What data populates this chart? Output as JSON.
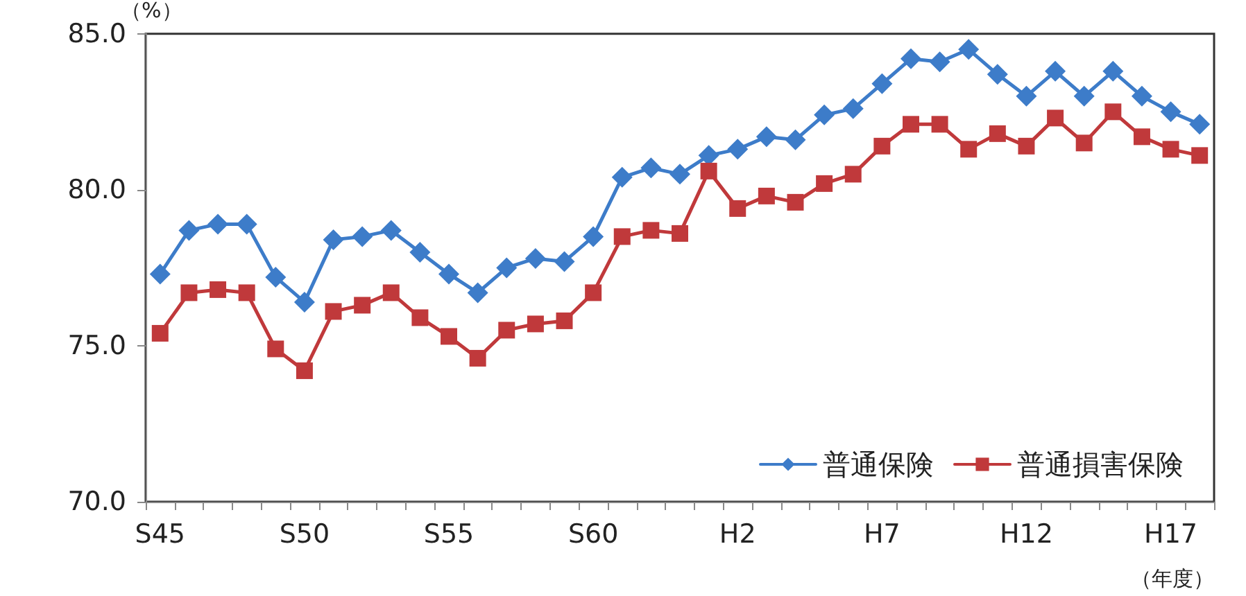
{
  "chart_data": {
    "type": "line",
    "ylabel": "（%）",
    "xlabel": "（年度）",
    "categories": [
      "S45",
      null,
      null,
      null,
      null,
      "S50",
      null,
      null,
      null,
      null,
      "S55",
      null,
      null,
      null,
      null,
      "S60",
      null,
      null,
      null,
      null,
      "H2",
      null,
      null,
      null,
      null,
      "H7",
      null,
      null,
      null,
      null,
      "H12",
      null,
      null,
      null,
      null,
      "H17",
      null
    ],
    "series": [
      {
        "name": "普通保険",
        "color": "#3d7cc9",
        "marker": "diamond",
        "values": [
          77.3,
          78.7,
          78.9,
          78.9,
          77.2,
          76.4,
          78.4,
          78.5,
          78.7,
          78.0,
          77.3,
          76.7,
          77.5,
          77.8,
          77.7,
          78.5,
          80.4,
          80.7,
          80.5,
          81.1,
          81.3,
          81.7,
          81.6,
          82.4,
          82.6,
          83.4,
          84.2,
          84.1,
          84.5,
          83.7,
          83.0,
          83.8,
          83.0,
          83.8,
          83.0,
          82.5,
          82.1
        ]
      },
      {
        "name": "普通損害保険",
        "color": "#c0393b",
        "marker": "square",
        "values": [
          75.4,
          76.7,
          76.8,
          76.7,
          74.9,
          74.2,
          76.1,
          76.3,
          76.7,
          75.9,
          75.3,
          74.6,
          75.5,
          75.7,
          75.8,
          76.7,
          78.5,
          78.7,
          78.6,
          80.6,
          79.4,
          79.8,
          79.6,
          80.2,
          80.5,
          81.4,
          82.1,
          82.1,
          81.3,
          81.8,
          81.4,
          82.3,
          81.5,
          82.5,
          81.7,
          81.3,
          81.1
        ]
      }
    ],
    "ylim": [
      70,
      85
    ],
    "yticks": [
      {
        "value": 70,
        "label": "70.0"
      },
      {
        "value": 75,
        "label": "75.0"
      },
      {
        "value": 80,
        "label": "80.0"
      },
      {
        "value": 85,
        "label": "85.0"
      }
    ],
    "grid": false,
    "legend": "bottom right"
  }
}
